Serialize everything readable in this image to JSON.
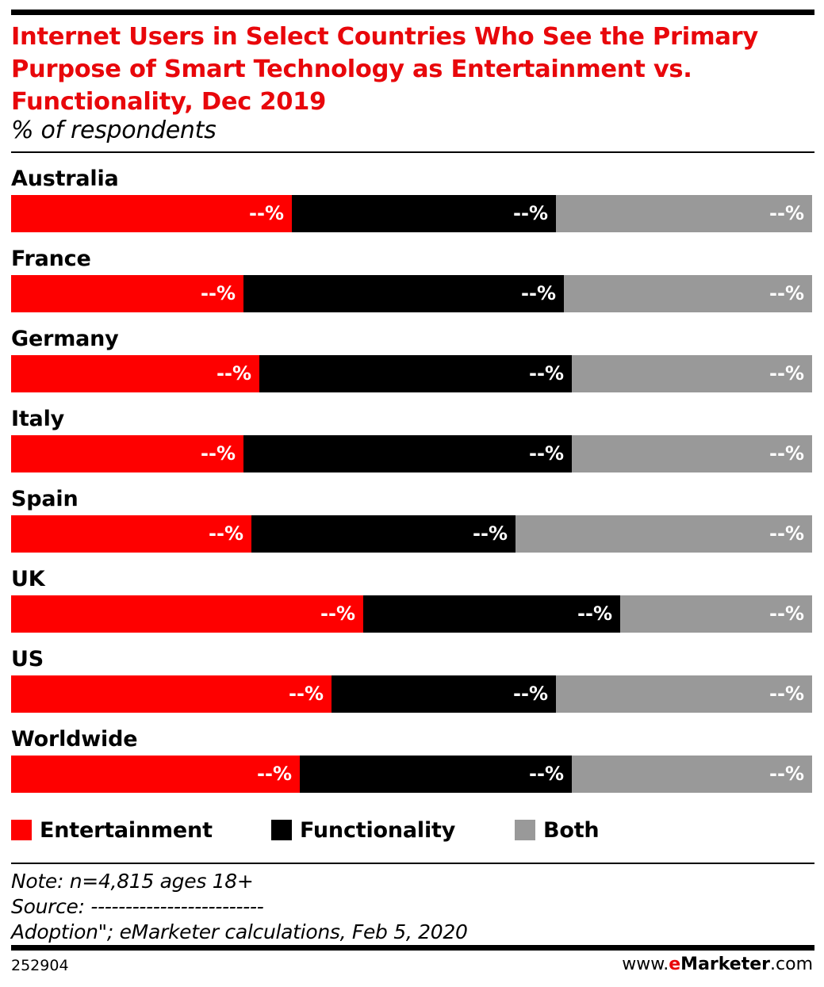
{
  "title": "Internet Users in Select Countries Who See the Primary Purpose of Smart Technology as Entertainment vs. Functionality, Dec 2019",
  "subtitle": "% of respondents",
  "colors": {
    "entertainment": "#fe0000",
    "functionality": "#000000",
    "both": "#999999",
    "title": "#e8070b"
  },
  "chart_data": {
    "type": "bar",
    "orientation": "horizontal",
    "stacked": true,
    "percent_stacked": true,
    "categories": [
      "Australia",
      "France",
      "Germany",
      "Italy",
      "Spain",
      "UK",
      "US",
      "Worldwide"
    ],
    "series": [
      {
        "name": "Entertainment",
        "color": "#fe0000",
        "values": [
          35,
          29,
          31,
          29,
          30,
          44,
          40,
          36
        ],
        "labels": [
          "--%",
          "--%",
          "--%",
          "--%",
          "--%",
          "--%",
          "--%",
          "--%"
        ]
      },
      {
        "name": "Functionality",
        "color": "#000000",
        "values": [
          33,
          40,
          39,
          41,
          33,
          32,
          28,
          34
        ],
        "labels": [
          "--%",
          "--%",
          "--%",
          "--%",
          "--%",
          "--%",
          "--%",
          "--%"
        ]
      },
      {
        "name": "Both",
        "color": "#999999",
        "values": [
          32,
          31,
          30,
          30,
          37,
          24,
          32,
          30
        ],
        "labels": [
          "--%",
          "--%",
          "--%",
          "--%",
          "--%",
          "--%",
          "--%",
          "--%"
        ]
      }
    ],
    "xlim": [
      0,
      100
    ],
    "grid": false,
    "legend": "bottom"
  },
  "legend": [
    "Entertainment",
    "Functionality",
    "Both"
  ],
  "notes": {
    "note": "Note: n=4,815 ages 18+",
    "source": "Source: -------------------------",
    "source_cont": "Adoption\"; eMarketer calculations, Feb 5, 2020"
  },
  "footer": {
    "chart_id": "252904",
    "brand_prefix": "www.",
    "brand_e": "e",
    "brand_name": "Marketer",
    "brand_suffix": ".com"
  }
}
